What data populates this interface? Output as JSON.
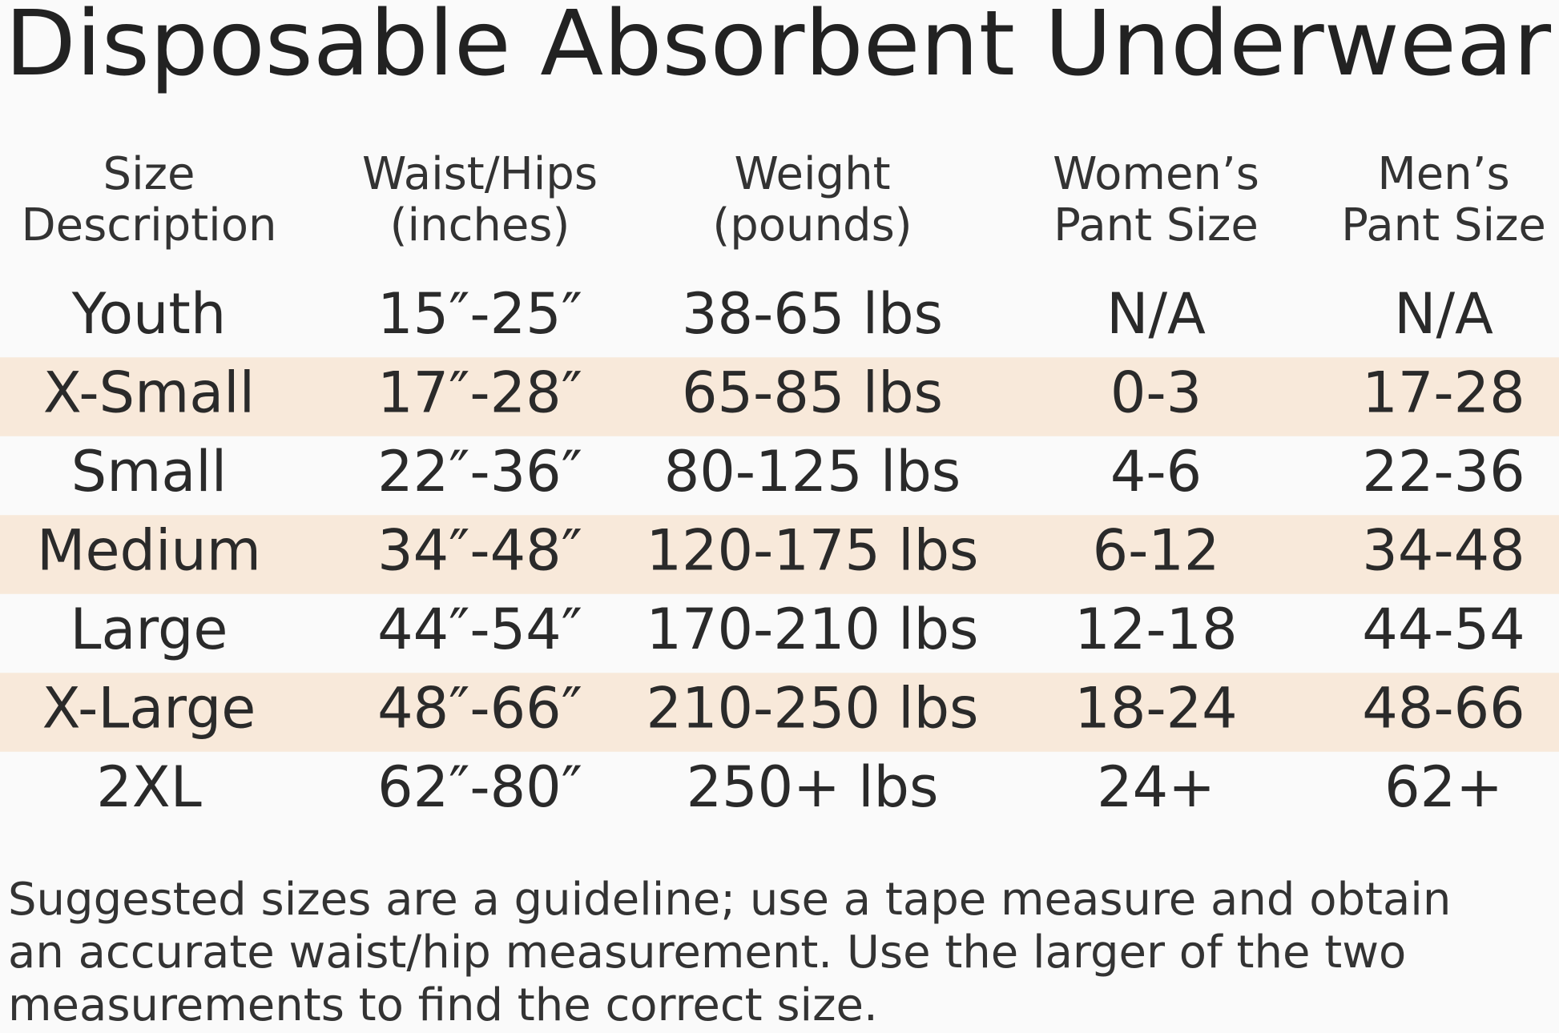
{
  "header": {
    "title": "Disposable Absorbent Underwear"
  },
  "table": {
    "columns": [
      [
        "Size",
        "Description"
      ],
      [
        "Waist/Hips",
        "(inches)"
      ],
      [
        "Weight",
        "(pounds)"
      ],
      [
        "Women’s",
        "Pant Size"
      ],
      [
        "Men’s",
        "Pant Size"
      ]
    ],
    "rows": [
      [
        "Youth",
        "15″-25″",
        "38-65 lbs",
        "N/A",
        "N/A"
      ],
      [
        "X-Small",
        "17″-28″",
        "65-85 lbs",
        "0-3",
        "17-28"
      ],
      [
        "Small",
        "22″-36″",
        "80-125 lbs",
        "4-6",
        "22-36"
      ],
      [
        "Medium",
        "34″-48″",
        "120-175 lbs",
        "6-12",
        "34-48"
      ],
      [
        "Large",
        "44″-54″",
        "170-210 lbs",
        "12-18",
        "44-54"
      ],
      [
        "X-Large",
        "48″-66″",
        "210-250 lbs",
        "18-24",
        "48-66"
      ],
      [
        "2XL",
        "62″-80″",
        "250+ lbs",
        "24+",
        "62+"
      ]
    ]
  },
  "footnote": [
    "Suggested sizes are a guideline; use a tape measure and obtain",
    "an accurate waist/hip measurement. Use the larger of the two",
    "measurements to find the correct size."
  ]
}
